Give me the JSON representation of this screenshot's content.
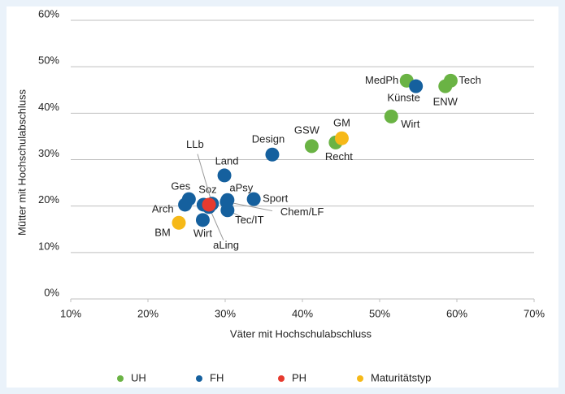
{
  "chart_data": {
    "type": "scatter",
    "xlabel": "Väter mit Hochschulabschluss",
    "ylabel": "Mütter mit Hochschulabschluss",
    "xlim": [
      10,
      70
    ],
    "xticks": [
      {
        "value": 10,
        "label": "10%"
      },
      {
        "value": 20,
        "label": "20%"
      },
      {
        "value": 30,
        "label": "30%"
      },
      {
        "value": 40,
        "label": "40%"
      },
      {
        "value": 50,
        "label": "50%"
      },
      {
        "value": 60,
        "label": "60%"
      },
      {
        "value": 70,
        "label": "70%"
      }
    ],
    "ylim": [
      0,
      60
    ],
    "yticks": [
      {
        "value": 0,
        "label": "0%"
      },
      {
        "value": 10,
        "label": "10%"
      },
      {
        "value": 20,
        "label": "20%"
      },
      {
        "value": 30,
        "label": "30%"
      },
      {
        "value": 40,
        "label": "40%"
      },
      {
        "value": 50,
        "label": "50%"
      },
      {
        "value": 60,
        "label": "60%"
      }
    ],
    "grid": true,
    "legend": "bottom",
    "series": [
      {
        "name": "UH",
        "color": "#6ab344",
        "labels": [
          "MedPh",
          "Tech",
          "ENW",
          "Wirt",
          "GSW",
          "Recht"
        ],
        "x": [
          53.5,
          59.2,
          58.5,
          51.5,
          41.2,
          44.3
        ],
        "values": [
          47,
          47,
          45.8,
          39.3,
          32.9,
          33.7
        ]
      },
      {
        "name": "FH",
        "color": "#15609e",
        "labels": [
          "Künste",
          "Design",
          "Land",
          "Ges",
          "Arch",
          "Soz",
          "aPsy",
          "Sport",
          "Tec/IT",
          "Wirt",
          "LLb",
          "aLing",
          "Chem/LF"
        ],
        "x": [
          54.7,
          36.1,
          29.9,
          25.3,
          24.8,
          27.2,
          30.3,
          33.7,
          30.3,
          27.1,
          28.3,
          27.9,
          30.2
        ],
        "values": [
          45.8,
          31.1,
          26.6,
          21.5,
          20.3,
          20.3,
          21.3,
          21.5,
          19.1,
          17,
          20.5,
          19.8,
          20.9
        ]
      },
      {
        "name": "PH",
        "color": "#e63a2e",
        "x": [
          27.9
        ],
        "values": [
          20.3
        ]
      },
      {
        "name": "Maturitätstyp",
        "color": "#f6b918",
        "labels": [
          "GM",
          "BM"
        ],
        "x": [
          45.1,
          24
        ],
        "values": [
          34.6,
          16.4
        ]
      }
    ]
  }
}
